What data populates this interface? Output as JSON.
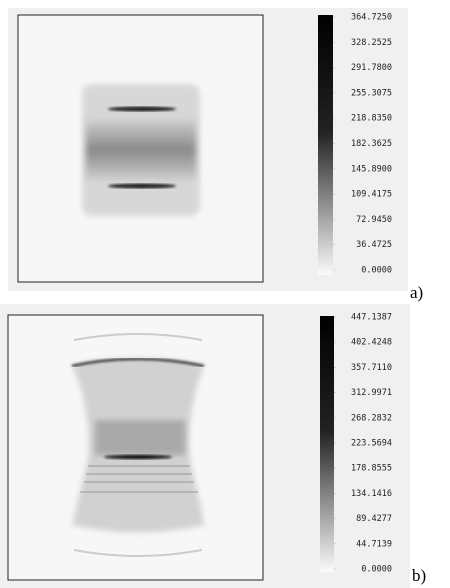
{
  "panels": [
    {
      "label": "a)",
      "colorbar": {
        "lim": [
          0,
          364.725
        ],
        "ticks": [
          {
            "value": 364.725,
            "label": "364.7250"
          },
          {
            "value": 328.2525,
            "label": "328.2525"
          },
          {
            "value": 291.78,
            "label": "291.7800"
          },
          {
            "value": 255.3075,
            "label": "255.3075"
          },
          {
            "value": 218.835,
            "label": "218.8350"
          },
          {
            "value": 182.3625,
            "label": "182.3625"
          },
          {
            "value": 145.89,
            "label": "145.8900"
          },
          {
            "value": 109.4175,
            "label": "109.4175"
          },
          {
            "value": 72.945,
            "label": "72.9450"
          },
          {
            "value": 36.4725,
            "label": "36.4725"
          },
          {
            "value": 0,
            "label": "0.0000"
          }
        ]
      }
    },
    {
      "label": "b)",
      "colorbar": {
        "lim": [
          0,
          447.1387
        ],
        "ticks": [
          {
            "value": 447.1387,
            "label": "447.1387"
          },
          {
            "value": 402.4248,
            "label": "402.4248"
          },
          {
            "value": 357.711,
            "label": "357.7110"
          },
          {
            "value": 312.9971,
            "label": "312.9971"
          },
          {
            "value": 268.2832,
            "label": "268.2832"
          },
          {
            "value": 223.5694,
            "label": "223.5694"
          },
          {
            "value": 178.8555,
            "label": "178.8555"
          },
          {
            "value": 134.1416,
            "label": "134.1416"
          },
          {
            "value": 89.4277,
            "label": "89.4277"
          },
          {
            "value": 44.7139,
            "label": "44.7139"
          },
          {
            "value": 0,
            "label": "0.0000"
          }
        ]
      }
    }
  ]
}
